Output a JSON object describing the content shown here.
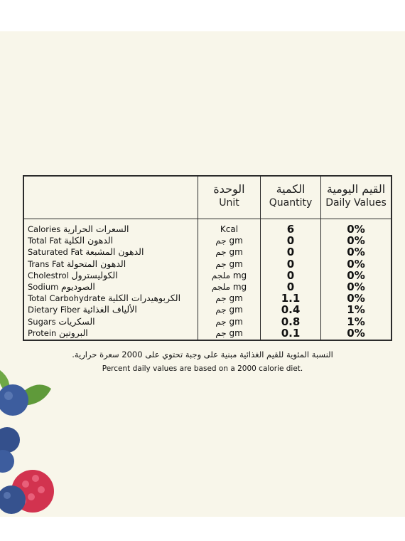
{
  "header": {
    "unit_ar": "الوحدة",
    "unit_en": "Unit",
    "qty_ar": "الكمية",
    "qty_en": "Quantity",
    "dv_ar": "القيم اليومية",
    "dv_en": "Daily Values"
  },
  "rows": [
    {
      "en": "Calories",
      "ar": "السعرات الحرارية",
      "unit": "Kcal",
      "qty": "6",
      "dv": "0%"
    },
    {
      "en": "Total Fat",
      "ar": "الدهون الكلية",
      "unit": "جم gm",
      "qty": "0",
      "dv": "0%"
    },
    {
      "en": "Saturated Fat",
      "ar": "الدهون المشبعة",
      "unit": "جم gm",
      "qty": "0",
      "dv": "0%"
    },
    {
      "en": "Trans Fat",
      "ar": "الدهون المتحولة",
      "unit": "جم gm",
      "qty": "0",
      "dv": "0%"
    },
    {
      "en": "Cholestrol",
      "ar": "الكوليسترول",
      "unit": "ملجم mg",
      "qty": "0",
      "dv": "0%"
    },
    {
      "en": "Sodium",
      "ar": "الصوديوم",
      "unit": "ملجم mg",
      "qty": "0",
      "dv": "0%"
    },
    {
      "en": "Total Carbohydrate",
      "ar": "الكربوهيدرات الكلية",
      "unit": "جم gm",
      "qty": "1.1",
      "dv": "0%"
    },
    {
      "en": "Dietary Fiber",
      "ar": "الألياف الغذائية",
      "unit": "جم gm",
      "qty": "0.4",
      "dv": "1%"
    },
    {
      "en": "Sugars",
      "ar": "السكريات",
      "unit": "جم gm",
      "qty": "0.8",
      "dv": "1%"
    },
    {
      "en": "Protein",
      "ar": "البروتين",
      "unit": "جم gm",
      "qty": "0.1",
      "dv": "0%"
    }
  ],
  "footnote": {
    "ar": "النسبة المئوية للقيم الغذائية مبنية على وجبة تحتوي على 2000 سعرة حرارية.",
    "en": "Percent daily values are based on a 2000 calorie diet."
  },
  "colors": {
    "panel_background": "#f8f6ea",
    "border": "#2b2b2b",
    "blueberry": "#3d5d9e",
    "raspberry": "#d2334f",
    "leaf": "#5f9a3a"
  },
  "decoration_icons": [
    "blueberry-icon",
    "raspberry-icon",
    "leaf-icon"
  ]
}
